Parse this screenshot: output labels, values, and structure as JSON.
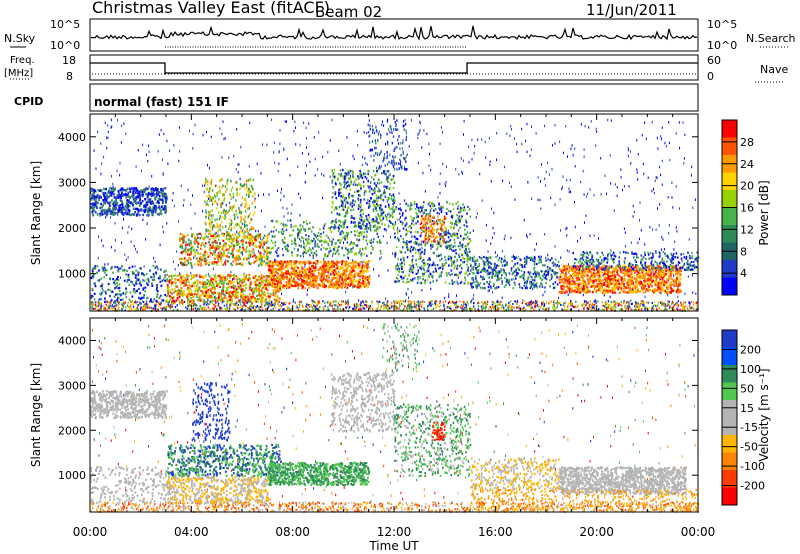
{
  "header": {
    "station": "Christmas Valley East (fitACF)",
    "beam": "Beam 02",
    "date": "11/Jun/2011"
  },
  "summary": {
    "nsky_label": "N.Sky",
    "nsearch_label": "N.Search",
    "freq_label_top": "Freq.",
    "freq_label_unit": "[MHz]",
    "nave_label": "Nave",
    "cpid_label": "CPID",
    "cpid_value": "normal (fast) 151 IF",
    "noise_ticks": [
      "10^5",
      "10^0"
    ],
    "freq_ticks": [
      "18",
      "8"
    ],
    "nave_ticks": [
      "60",
      "0"
    ]
  },
  "chart_data": [
    {
      "type": "heatmap",
      "ylabel": "Slant Range [km]",
      "xlabel": "Time UT",
      "x_ticks": [
        "00:00",
        "04:00",
        "08:00",
        "12:00",
        "16:00",
        "20:00",
        "00:00"
      ],
      "y_ticks": [
        "1000",
        "2000",
        "3000",
        "4000"
      ],
      "xlim_hours": [
        0,
        24
      ],
      "ylim_km": [
        180,
        4500
      ],
      "colorbar": {
        "label": "Power [dB]",
        "ticks": [
          "28",
          "24",
          "20",
          "16",
          "12",
          "8",
          "4"
        ],
        "colors": [
          "#ff0000",
          "#ff5500",
          "#ff9900",
          "#ffd200",
          "#96d200",
          "#46b446",
          "#2e8b57",
          "#1e6464",
          "#1e3cc8",
          "#0000ff"
        ]
      }
    },
    {
      "type": "heatmap",
      "ylabel": "Slant Range [km]",
      "xlabel": "Time UT",
      "x_ticks": [
        "00:00",
        "04:00",
        "08:00",
        "12:00",
        "16:00",
        "20:00",
        "00:00"
      ],
      "y_ticks": [
        "1000",
        "2000",
        "3000",
        "4000"
      ],
      "xlim_hours": [
        0,
        24
      ],
      "ylim_km": [
        180,
        4500
      ],
      "colorbar": {
        "label": "Velocity [m s⁻¹]",
        "ticks": [
          "200",
          "100",
          "50",
          "15",
          "-15",
          "-50",
          "-100",
          "-200"
        ],
        "colors": [
          "#1e3cc8",
          "#0050ff",
          "#2e8b57",
          "#50c850",
          "#b4b4b4",
          "#b4b4b4",
          "#ffb400",
          "#ff8200",
          "#ff3c00",
          "#ff0000"
        ]
      }
    }
  ],
  "colors": {
    "power_palette": [
      "#0000ff",
      "#2040c0",
      "#2e8b57",
      "#46b446",
      "#96d200",
      "#ffd200",
      "#ff9900",
      "#ff5500",
      "#ff0000"
    ],
    "velocity_palette": [
      "#1e3cc8",
      "#2e8b57",
      "#50c850",
      "#b4b4b4",
      "#ffb400",
      "#ff8200",
      "#ff3c00",
      "#ff0000"
    ]
  }
}
